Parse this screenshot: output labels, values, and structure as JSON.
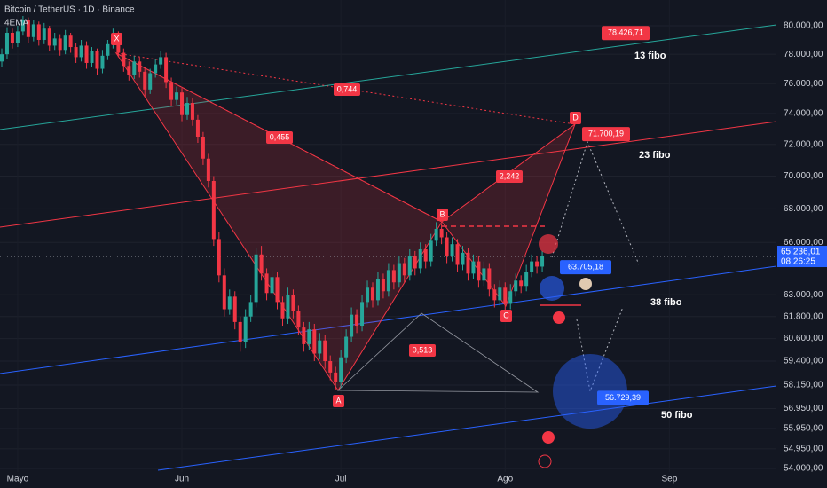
{
  "chart_data": {
    "type": "candlestick",
    "title": "Bitcoin / TetherUS · 1D · Binance",
    "indicator": "4EMA",
    "log_scale": true,
    "grid": true,
    "up_color": "#26a69a",
    "down_color": "#f23645",
    "xlim": [
      0,
      146.2
    ],
    "xticks": [
      {
        "value": 3,
        "label": "Mayo"
      },
      {
        "value": 34,
        "label": "Jun"
      },
      {
        "value": 64,
        "label": "Jul"
      },
      {
        "value": 95,
        "label": "Ago"
      },
      {
        "value": 126,
        "label": "Sep"
      }
    ],
    "ylim": [
      53830,
      81850
    ],
    "yticks": [
      {
        "value": 80000,
        "label": "80.000,00"
      },
      {
        "value": 78000,
        "label": "78.000,00"
      },
      {
        "value": 76000,
        "label": "76.000,00"
      },
      {
        "value": 74000,
        "label": "74.000,00"
      },
      {
        "value": 72000,
        "label": "72.000,00"
      },
      {
        "value": 70000,
        "label": "70.000,00"
      },
      {
        "value": 68000,
        "label": "68.000,00"
      },
      {
        "value": 66000,
        "label": "66.000,00"
      },
      {
        "value": 63000,
        "label": "63.000,00"
      },
      {
        "value": 61800,
        "label": "61.800,00"
      },
      {
        "value": 60600,
        "label": "60.600,00"
      },
      {
        "value": 59400,
        "label": "59.400,00"
      },
      {
        "value": 58150,
        "label": "58.150,00"
      },
      {
        "value": 56950,
        "label": "56.950,00"
      },
      {
        "value": 55950,
        "label": "55.950,00"
      },
      {
        "value": 54950,
        "label": "54.950,00"
      },
      {
        "value": 54000,
        "label": "54.000,00"
      }
    ],
    "last_price": {
      "value": 65236.01,
      "label": "65.236,01"
    },
    "countdown": "08:26:25",
    "price_labels": [
      {
        "value": 78426.71,
        "label": "78.426,71"
      },
      {
        "value": 71700.19,
        "label": "71.700,19"
      },
      {
        "value": 63705.18,
        "label": "63.705,18"
      },
      {
        "value": 56729.39,
        "label": "56.729,39"
      }
    ],
    "fibo_labels": [
      "13 fibo",
      "23 fibo",
      "38 fibo",
      "50 fibo"
    ],
    "pattern_points": [
      "X",
      "A",
      "B",
      "C",
      "D"
    ],
    "ratios": [
      "0,744",
      "0,455",
      "2,242",
      "0,513"
    ],
    "candles": [
      [
        77500,
        78400,
        77100,
        78000
      ],
      [
        78000,
        79900,
        77700,
        79500
      ],
      [
        79500,
        79800,
        78400,
        78800
      ],
      [
        78800,
        80000,
        78500,
        79600
      ],
      [
        79600,
        80700,
        79300,
        80400
      ],
      [
        80400,
        80600,
        78800,
        79200
      ],
      [
        79200,
        80400,
        78900,
        80100
      ],
      [
        80100,
        80300,
        78600,
        79000
      ],
      [
        79000,
        80200,
        78700,
        79800
      ],
      [
        79800,
        80000,
        78200,
        78600
      ],
      [
        78600,
        79500,
        78300,
        79100
      ],
      [
        79100,
        79400,
        77900,
        78300
      ],
      [
        78300,
        79700,
        78000,
        79300
      ],
      [
        79300,
        79500,
        78100,
        78500
      ],
      [
        78500,
        78800,
        77400,
        77800
      ],
      [
        77800,
        79000,
        77500,
        78600
      ],
      [
        78600,
        78900,
        77000,
        77400
      ],
      [
        77400,
        78500,
        77100,
        78200
      ],
      [
        78200,
        78400,
        76600,
        77000
      ],
      [
        77000,
        78300,
        76700,
        77900
      ],
      [
        77900,
        79000,
        77600,
        78700
      ],
      [
        78700,
        79800,
        78400,
        79400
      ],
      [
        79400,
        79600,
        77800,
        78100
      ],
      [
        78100,
        78400,
        76800,
        77200
      ],
      [
        77200,
        77500,
        76200,
        76600
      ],
      [
        76600,
        77900,
        76300,
        77500
      ],
      [
        77500,
        77800,
        76400,
        76800
      ],
      [
        76800,
        77100,
        75100,
        75600
      ],
      [
        75600,
        77000,
        75300,
        76700
      ],
      [
        76700,
        77700,
        76400,
        77300
      ],
      [
        77300,
        78200,
        77000,
        77800
      ],
      [
        77800,
        78100,
        75700,
        76100
      ],
      [
        76100,
        76400,
        74500,
        74900
      ],
      [
        74900,
        75800,
        74600,
        75400
      ],
      [
        75400,
        75700,
        73500,
        73900
      ],
      [
        73900,
        75100,
        73600,
        74700
      ],
      [
        74700,
        75000,
        73200,
        73600
      ],
      [
        73600,
        73900,
        72100,
        72500
      ],
      [
        72500,
        72800,
        70700,
        71100
      ],
      [
        71100,
        71400,
        69300,
        69700
      ],
      [
        69700,
        70000,
        65800,
        66200
      ],
      [
        66200,
        66600,
        63700,
        64100
      ],
      [
        64100,
        64500,
        61800,
        62200
      ],
      [
        62200,
        63300,
        61900,
        62900
      ],
      [
        62900,
        63200,
        61100,
        61500
      ],
      [
        61500,
        61800,
        59900,
        60400
      ],
      [
        60400,
        62200,
        60100,
        61800
      ],
      [
        61800,
        63000,
        61500,
        62600
      ],
      [
        62600,
        65700,
        62300,
        65300
      ],
      [
        65300,
        65800,
        63800,
        64200
      ],
      [
        64200,
        64500,
        62700,
        63100
      ],
      [
        63100,
        64400,
        62800,
        64000
      ],
      [
        64000,
        64300,
        62200,
        62600
      ],
      [
        62600,
        62900,
        61300,
        61700
      ],
      [
        61700,
        63400,
        61400,
        63000
      ],
      [
        63000,
        63300,
        61700,
        62100
      ],
      [
        62100,
        62400,
        60800,
        61200
      ],
      [
        61200,
        61500,
        59900,
        60300
      ],
      [
        60300,
        61500,
        60000,
        61100
      ],
      [
        61100,
        61400,
        59400,
        59800
      ],
      [
        59800,
        60900,
        59500,
        60500
      ],
      [
        60500,
        60800,
        59000,
        59400
      ],
      [
        59400,
        59700,
        58400,
        58800
      ],
      [
        58800,
        59100,
        57900,
        58300
      ],
      [
        58300,
        60000,
        58000,
        59600
      ],
      [
        59600,
        61100,
        59300,
        60700
      ],
      [
        60700,
        62300,
        60400,
        61900
      ],
      [
        61900,
        62200,
        60900,
        61300
      ],
      [
        61300,
        63000,
        61000,
        62600
      ],
      [
        62600,
        63800,
        62300,
        63400
      ],
      [
        63400,
        63700,
        62300,
        62700
      ],
      [
        62700,
        64300,
        62400,
        63900
      ],
      [
        63900,
        64200,
        62800,
        63200
      ],
      [
        63200,
        64800,
        62900,
        64400
      ],
      [
        64400,
        64700,
        63300,
        63700
      ],
      [
        63700,
        65200,
        63400,
        64800
      ],
      [
        64800,
        65100,
        63700,
        64100
      ],
      [
        64100,
        65600,
        63800,
        65200
      ],
      [
        65200,
        65500,
        64100,
        64500
      ],
      [
        64500,
        66000,
        64200,
        65600
      ],
      [
        65600,
        65900,
        64500,
        64900
      ],
      [
        64900,
        66500,
        64600,
        66100
      ],
      [
        66100,
        67200,
        65800,
        66800
      ],
      [
        66800,
        67100,
        65900,
        66300
      ],
      [
        66300,
        66600,
        64800,
        65200
      ],
      [
        65200,
        66300,
        64900,
        65900
      ],
      [
        65900,
        66200,
        64300,
        64700
      ],
      [
        64700,
        65800,
        64400,
        65400
      ],
      [
        65400,
        65700,
        63800,
        64200
      ],
      [
        64200,
        65300,
        63900,
        64900
      ],
      [
        64900,
        65200,
        63400,
        63800
      ],
      [
        63800,
        64900,
        63500,
        64500
      ],
      [
        64500,
        64800,
        62900,
        63300
      ],
      [
        63300,
        63600,
        62300,
        62700
      ],
      [
        62700,
        63800,
        62400,
        63400
      ],
      [
        63400,
        63700,
        62100,
        62500
      ],
      [
        62500,
        63600,
        62200,
        63200
      ],
      [
        63200,
        64200,
        62900,
        63800
      ],
      [
        63800,
        64100,
        63100,
        63500
      ],
      [
        63500,
        64700,
        63200,
        64300
      ],
      [
        64300,
        65300,
        64000,
        64900
      ],
      [
        64900,
        65200,
        64200,
        64600
      ],
      [
        64600,
        65500,
        64300,
        65236
      ]
    ]
  }
}
